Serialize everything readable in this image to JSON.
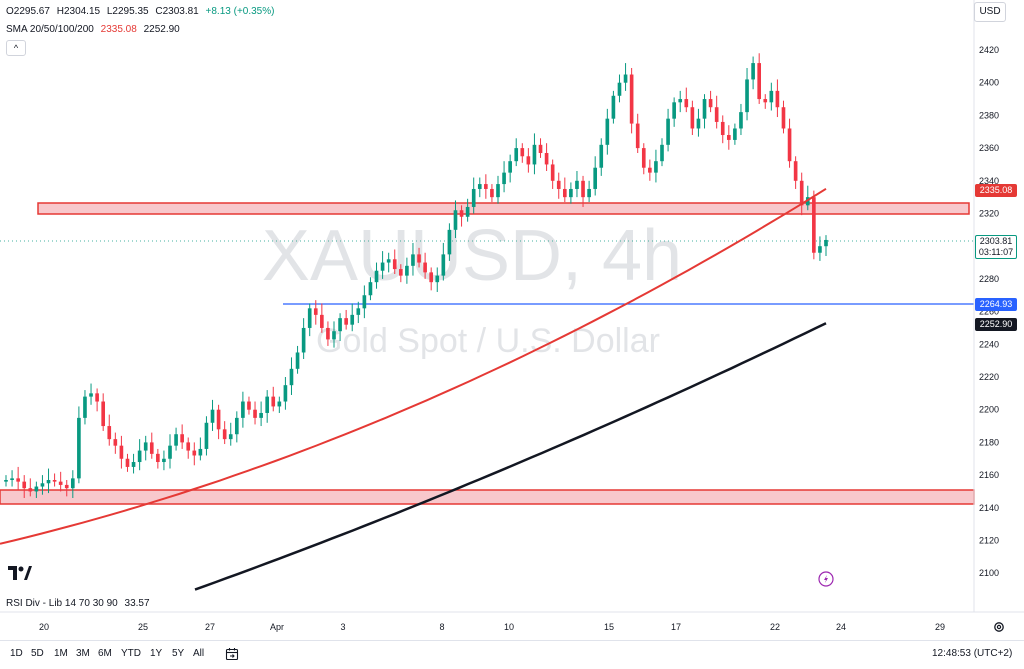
{
  "legend": {
    "open": "O2295.67",
    "high": "H2304.15",
    "low": "L2295.35",
    "close": "C2303.81",
    "change": "+8.13 (+0.35%)",
    "sma_label": "SMA 20/50/100/200",
    "sma_value_1": "2335.08",
    "sma_value_2": "2252.90",
    "collapse": "^"
  },
  "currency": "USD",
  "watermark": {
    "symbol": "XAUUSD, 4h",
    "description": "Gold Spot / U.S. Dollar"
  },
  "price_tags": {
    "sma100": "2335.08",
    "blue_line": "2264.93",
    "sma200": "2252.90",
    "last_price": "2303.81",
    "countdown": "03:11:07"
  },
  "rsi": {
    "label": "RSI Div - Lib 14 70 30 90",
    "value": "33.57"
  },
  "time_axis": {
    "labels": [
      "20",
      "25",
      "27",
      "Apr",
      "3",
      "8",
      "10",
      "15",
      "17",
      "22",
      "24",
      "29"
    ]
  },
  "range_buttons": [
    "1D",
    "5D",
    "1M",
    "3M",
    "6M",
    "YTD",
    "1Y",
    "5Y",
    "All"
  ],
  "clock": "12:48:53 (UTC+2)",
  "colors": {
    "bull": "#089981",
    "bear": "#f23645",
    "sma100": "#e53935",
    "sma200": "#131722",
    "zone_fill": "#f8c8cc",
    "zone_border": "#e53935",
    "blue_line": "#2962ff"
  },
  "chart_data": {
    "type": "candlestick",
    "symbol": "XAUUSD",
    "interval": "4h",
    "y_axis_ticks": [
      2420,
      2400,
      2380,
      2360,
      2340,
      2320,
      2300,
      2280,
      2260,
      2240,
      2220,
      2200,
      2180,
      2160,
      2140,
      2120,
      2100
    ],
    "ylim": [
      2092,
      2430
    ],
    "x_tick_labels": [
      "20",
      "25",
      "27",
      "Apr",
      "3",
      "8",
      "10",
      "15",
      "17",
      "22",
      "24",
      "29"
    ],
    "zones": [
      {
        "name": "resistance",
        "from": 2320,
        "to": 2327
      },
      {
        "name": "support",
        "from": 2144,
        "to": 2153
      }
    ],
    "horizontal_lines": [
      {
        "value": 2264.93
      }
    ],
    "candles_close": [
      2157,
      2158,
      2156,
      2152,
      2150,
      2153,
      2155,
      2157,
      2156,
      2154,
      2152,
      2158,
      2195,
      2208,
      2210,
      2205,
      2190,
      2182,
      2178,
      2170,
      2165,
      2168,
      2175,
      2180,
      2173,
      2168,
      2170,
      2178,
      2185,
      2180,
      2175,
      2172,
      2176,
      2192,
      2200,
      2188,
      2182,
      2185,
      2195,
      2205,
      2200,
      2195,
      2198,
      2208,
      2202,
      2205,
      2215,
      2225,
      2235,
      2250,
      2262,
      2258,
      2250,
      2243,
      2248,
      2256,
      2252,
      2258,
      2262,
      2270,
      2278,
      2285,
      2290,
      2292,
      2286,
      2282,
      2288,
      2295,
      2290,
      2284,
      2278,
      2282,
      2295,
      2310,
      2322,
      2318,
      2324,
      2335,
      2338,
      2335,
      2330,
      2338,
      2345,
      2352,
      2360,
      2355,
      2350,
      2362,
      2357,
      2350,
      2340,
      2335,
      2330,
      2335,
      2340,
      2330,
      2335,
      2348,
      2362,
      2378,
      2392,
      2400,
      2405,
      2375,
      2360,
      2348,
      2345,
      2352,
      2362,
      2378,
      2388,
      2390,
      2385,
      2372,
      2378,
      2390,
      2385,
      2376,
      2368,
      2365,
      2372,
      2382,
      2402,
      2412,
      2390,
      2388,
      2395,
      2385,
      2372,
      2352,
      2340,
      2325,
      2330,
      2296,
      2300,
      2303.81
    ],
    "sma100_start": 2118,
    "sma100_end": 2335.08,
    "sma200_start": 2090,
    "sma200_end": 2252.9
  }
}
